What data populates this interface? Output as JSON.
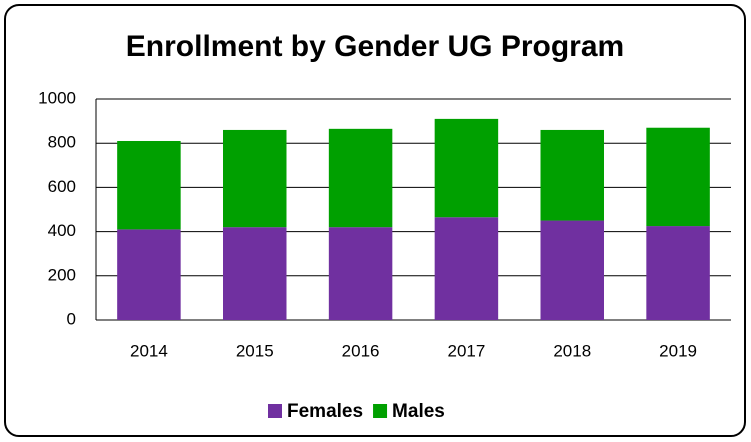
{
  "chart_data": {
    "type": "stacked_bar",
    "title": "Enrollment by Gender UG Program",
    "categories": [
      "2014",
      "2015",
      "2016",
      "2017",
      "2018",
      "2019"
    ],
    "series": [
      {
        "name": "Females",
        "color": "#7030a0",
        "values": [
          410,
          420,
          420,
          465,
          450,
          425
        ]
      },
      {
        "name": "Males",
        "color": "#00a000",
        "values": [
          400,
          440,
          445,
          445,
          410,
          445
        ]
      }
    ],
    "ylim": [
      0,
      1000
    ],
    "yticks": [
      0,
      200,
      400,
      600,
      800,
      1000
    ],
    "grid": true,
    "legend": "bottom"
  }
}
